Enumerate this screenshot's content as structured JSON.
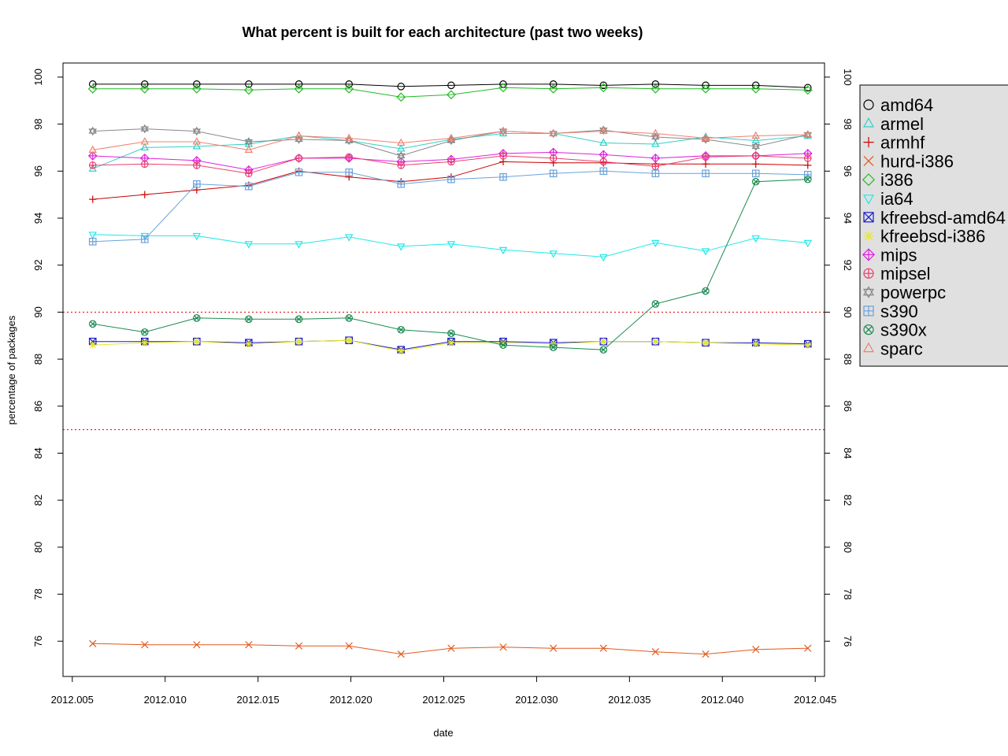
{
  "chart_data": {
    "type": "line",
    "title": "What percent is built for each architecture (past two weeks)",
    "xlabel": "date",
    "ylabel": "percentage of packages",
    "xlim": [
      2012.0045,
      2012.0455
    ],
    "ylim": [
      74.5,
      100.6
    ],
    "x_ticks": [
      "2012.005",
      "2012.010",
      "2012.015",
      "2012.020",
      "2012.025",
      "2012.030",
      "2012.035",
      "2012.040",
      "2012.045"
    ],
    "y_ticks": [
      "76",
      "78",
      "80",
      "82",
      "84",
      "86",
      "88",
      "90",
      "92",
      "94",
      "96",
      "98",
      "100"
    ],
    "reference_lines": [
      {
        "y": 90,
        "color": "#dd0000",
        "style": "dotted"
      },
      {
        "y": 85,
        "color": "#dd0000",
        "style": "dotted"
      }
    ],
    "legend_position": "right",
    "x": [
      2012.0061,
      2012.0089,
      2012.0117,
      2012.0145,
      2012.0172,
      2012.0199,
      2012.0227,
      2012.0254,
      2012.0282,
      2012.0309,
      2012.0336,
      2012.0364,
      2012.0391,
      2012.0418,
      2012.0446
    ],
    "series": [
      {
        "name": "amd64",
        "color": "#000000",
        "marker": "circle",
        "values": [
          99.7,
          99.7,
          99.7,
          99.7,
          99.7,
          99.7,
          99.6,
          99.65,
          99.7,
          99.7,
          99.65,
          99.7,
          99.65,
          99.65,
          99.55
        ]
      },
      {
        "name": "armel",
        "color": "#30d0c8",
        "marker": "triangle-up",
        "values": [
          96.1,
          97.0,
          97.05,
          97.15,
          97.5,
          97.3,
          96.95,
          97.35,
          97.6,
          97.6,
          97.2,
          97.15,
          97.45,
          97.3,
          97.5
        ]
      },
      {
        "name": "armhf",
        "color": "#cc0000",
        "marker": "plus",
        "values": [
          94.8,
          95.0,
          95.2,
          95.4,
          96.0,
          95.75,
          95.55,
          95.75,
          96.4,
          96.35,
          96.35,
          96.3,
          96.3,
          96.3,
          96.25
        ]
      },
      {
        "name": "hurd-i386",
        "color": "#e05a20",
        "marker": "cross",
        "values": [
          75.9,
          75.85,
          75.85,
          75.85,
          75.8,
          75.8,
          75.45,
          75.7,
          75.75,
          75.7,
          75.7,
          75.55,
          75.45,
          75.65,
          75.7
        ]
      },
      {
        "name": "i386",
        "color": "#22bb22",
        "marker": "diamond",
        "values": [
          99.5,
          99.5,
          99.5,
          99.45,
          99.5,
          99.5,
          99.15,
          99.25,
          99.55,
          99.5,
          99.55,
          99.5,
          99.5,
          99.5,
          99.45
        ]
      },
      {
        "name": "ia64",
        "color": "#22e8e8",
        "marker": "triangle-down",
        "values": [
          93.3,
          93.25,
          93.25,
          92.9,
          92.9,
          93.2,
          92.8,
          92.9,
          92.65,
          92.5,
          92.35,
          92.95,
          92.6,
          93.15,
          92.95
        ]
      },
      {
        "name": "kfreebsd-amd64",
        "color": "#1a1acc",
        "marker": "box-x",
        "values": [
          88.75,
          88.75,
          88.75,
          88.7,
          88.75,
          88.8,
          88.4,
          88.75,
          88.75,
          88.7,
          88.75,
          88.75,
          88.7,
          88.7,
          88.65
        ]
      },
      {
        "name": "kfreebsd-i386",
        "color": "#e8e820",
        "marker": "asterisk",
        "values": [
          88.6,
          88.7,
          88.75,
          88.65,
          88.75,
          88.8,
          88.35,
          88.7,
          88.7,
          88.65,
          88.75,
          88.75,
          88.7,
          88.65,
          88.6
        ]
      },
      {
        "name": "mips",
        "color": "#dd22dd",
        "marker": "diamond-plus",
        "values": [
          96.65,
          96.55,
          96.45,
          96.05,
          96.55,
          96.55,
          96.4,
          96.5,
          96.75,
          96.8,
          96.7,
          96.55,
          96.65,
          96.65,
          96.75
        ]
      },
      {
        "name": "mipsel",
        "color": "#e84070",
        "marker": "circle-plus",
        "values": [
          96.25,
          96.3,
          96.25,
          95.9,
          96.55,
          96.6,
          96.25,
          96.4,
          96.65,
          96.55,
          96.4,
          96.2,
          96.6,
          96.65,
          96.55
        ]
      },
      {
        "name": "powerpc",
        "color": "#888888",
        "marker": "star-of-david",
        "values": [
          97.7,
          97.8,
          97.7,
          97.25,
          97.35,
          97.3,
          96.65,
          97.3,
          97.7,
          97.6,
          97.75,
          97.45,
          97.35,
          97.05,
          97.55
        ]
      },
      {
        "name": "s390",
        "color": "#6aa2dc",
        "marker": "square-plus",
        "values": [
          93.0,
          93.1,
          95.45,
          95.35,
          95.95,
          95.95,
          95.45,
          95.65,
          95.75,
          95.9,
          96.0,
          95.9,
          95.9,
          95.9,
          95.85
        ]
      },
      {
        "name": "s390x",
        "color": "#1a8a50",
        "marker": "circle-x",
        "values": [
          89.5,
          89.15,
          89.75,
          89.7,
          89.7,
          89.75,
          89.25,
          89.1,
          88.6,
          88.5,
          88.4,
          90.35,
          90.9,
          95.55,
          95.65
        ]
      },
      {
        "name": "sparc",
        "color": "#f08070",
        "marker": "triangle-up",
        "values": [
          96.9,
          97.25,
          97.25,
          96.9,
          97.5,
          97.4,
          97.2,
          97.4,
          97.7,
          97.6,
          97.7,
          97.6,
          97.4,
          97.5,
          97.55
        ]
      }
    ]
  }
}
